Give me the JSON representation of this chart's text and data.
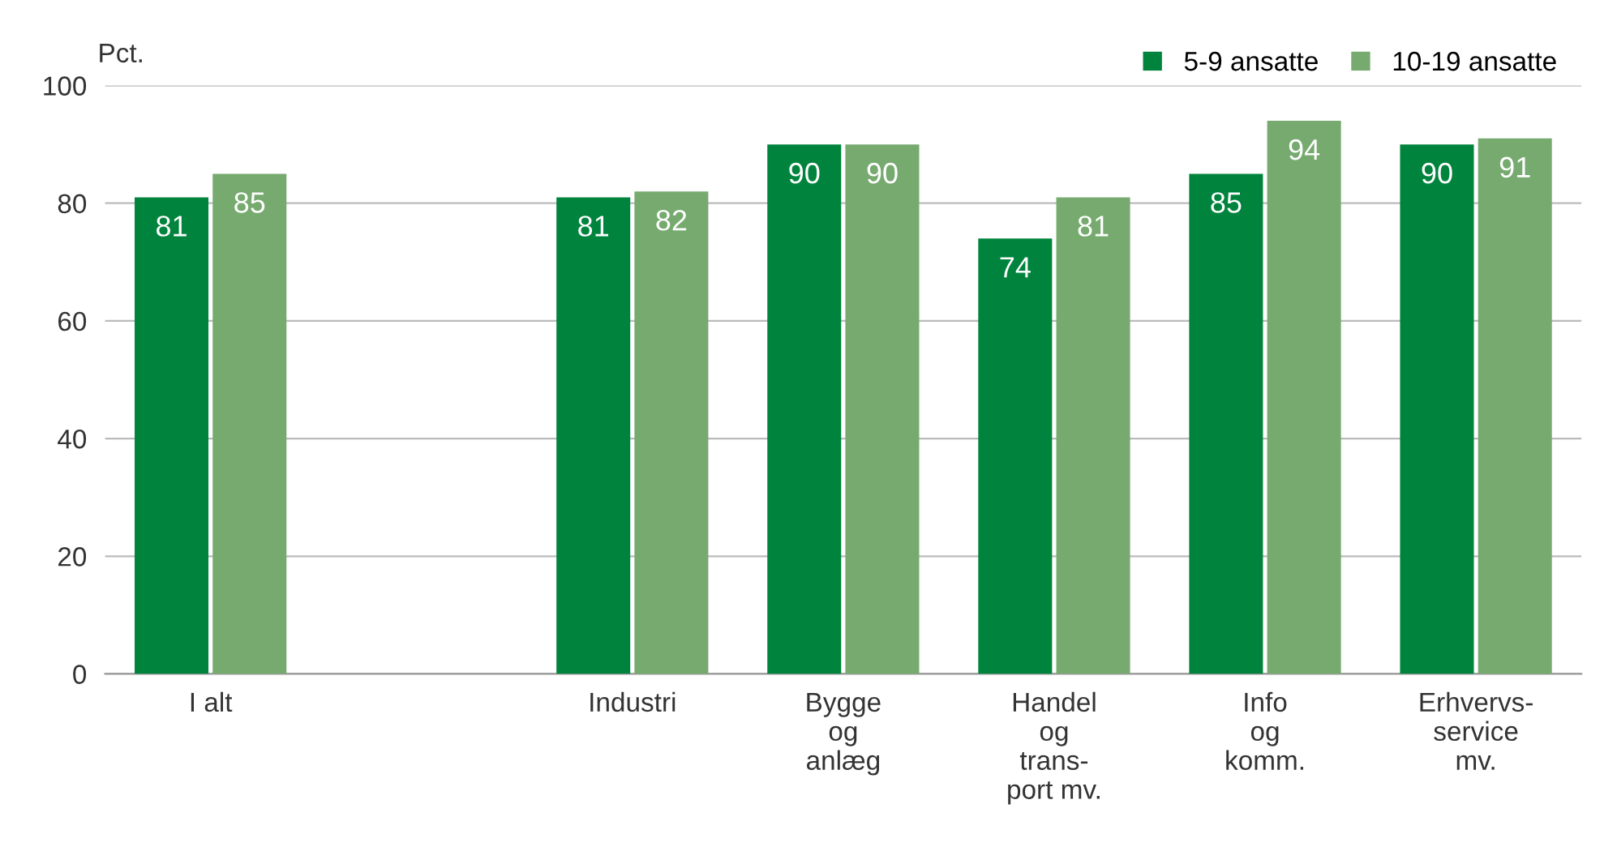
{
  "chart_data": {
    "type": "bar",
    "ylabel": "Pct.",
    "categories": [
      "I alt",
      null,
      "Industri",
      "Bygge\nog\nanlæg",
      "Handel\nog\ntrans-\nport mv.",
      "Info\nog\nkomm.",
      "Erhvervs-\nservice\nmv."
    ],
    "series": [
      {
        "name": "5-9 ansatte",
        "color": "#00843d",
        "values": [
          81,
          null,
          81,
          90,
          74,
          85,
          90
        ]
      },
      {
        "name": "10-19 ansatte",
        "color": "#76aa6f",
        "values": [
          85,
          null,
          82,
          90,
          81,
          94,
          91
        ]
      }
    ],
    "ylim": [
      0,
      100
    ],
    "yticks": [
      0,
      20,
      40,
      60,
      80,
      100
    ],
    "grid": "y",
    "legend": "top right",
    "data_labels": true
  }
}
